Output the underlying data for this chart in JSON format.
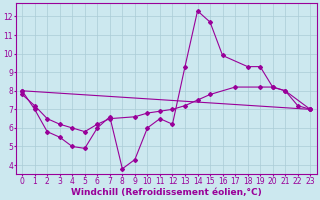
{
  "background_color": "#cce8ef",
  "grid_color": "#aaccd6",
  "line_color": "#990099",
  "xlim": [
    -0.5,
    23.5
  ],
  "ylim": [
    3.5,
    12.7
  ],
  "yticks": [
    4,
    5,
    6,
    7,
    8,
    9,
    10,
    11,
    12
  ],
  "xticks": [
    0,
    1,
    2,
    3,
    4,
    5,
    6,
    7,
    8,
    9,
    10,
    11,
    12,
    13,
    14,
    15,
    16,
    17,
    18,
    19,
    20,
    21,
    22,
    23
  ],
  "xlabel": "Windchill (Refroidissement éolien,°C)",
  "tick_fontsize": 5.5,
  "label_fontsize": 6.5,
  "series1_x": [
    0,
    1,
    2,
    3,
    4,
    5,
    6,
    7,
    8,
    9,
    10,
    11,
    12,
    13,
    14,
    15,
    16,
    18,
    19,
    20,
    21,
    23
  ],
  "series1_y": [
    8.0,
    7.0,
    5.8,
    5.5,
    5.0,
    4.9,
    6.0,
    6.6,
    3.8,
    4.3,
    6.0,
    6.5,
    6.2,
    9.3,
    12.3,
    11.7,
    9.9,
    9.3,
    9.3,
    8.2,
    8.0,
    7.0
  ],
  "series2_x": [
    0,
    23
  ],
  "series2_y": [
    8.0,
    7.0
  ],
  "series3_x": [
    0,
    1,
    2,
    3,
    4,
    5,
    6,
    7,
    9,
    10,
    11,
    12,
    13,
    14,
    15,
    17,
    19,
    20,
    21,
    22,
    23
  ],
  "series3_y": [
    7.8,
    7.2,
    6.5,
    6.2,
    6.0,
    5.8,
    6.2,
    6.5,
    6.6,
    6.8,
    6.9,
    7.0,
    7.2,
    7.5,
    7.8,
    8.2,
    8.2,
    8.2,
    8.0,
    7.2,
    7.0
  ]
}
